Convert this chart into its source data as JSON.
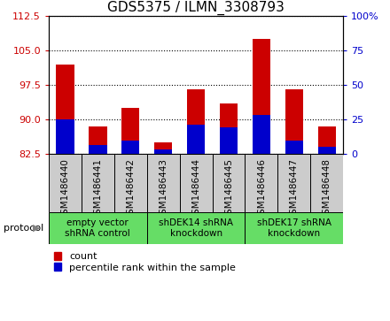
{
  "title": "GDS5375 / ILMN_3308793",
  "samples": [
    "GSM1486440",
    "GSM1486441",
    "GSM1486442",
    "GSM1486443",
    "GSM1486444",
    "GSM1486445",
    "GSM1486446",
    "GSM1486447",
    "GSM1486448"
  ],
  "count_values": [
    102.0,
    88.5,
    92.5,
    85.0,
    96.5,
    93.5,
    107.5,
    96.5,
    88.5
  ],
  "percentile_top": [
    90.0,
    84.5,
    85.5,
    83.5,
    88.8,
    88.3,
    91.0,
    85.5,
    84.0
  ],
  "percentile_bot": [
    82.5,
    82.5,
    82.5,
    82.5,
    82.5,
    82.5,
    82.5,
    82.5,
    82.5
  ],
  "bar_bottom": 82.5,
  "ylim_left": [
    82.5,
    112.5
  ],
  "yticks_left": [
    82.5,
    90.0,
    97.5,
    105.0,
    112.5
  ],
  "ylim_right": [
    0,
    100
  ],
  "yticks_right": [
    0,
    25,
    50,
    75,
    100
  ],
  "yticklabels_right": [
    "0",
    "25",
    "50",
    "75",
    "100%"
  ],
  "proto_labels": [
    "empty vector\nshRNA control",
    "shDEK14 shRNA\nknockdown",
    "shDEK17 shRNA\nknockdown"
  ],
  "proto_starts": [
    0,
    3,
    6
  ],
  "proto_ends": [
    3,
    6,
    9
  ],
  "proto_color": "#66dd66",
  "protocol_label": "protocol",
  "count_color": "#cc0000",
  "percentile_color": "#0000cc",
  "sample_bg_color": "#cccccc",
  "plot_bg_color": "#ffffff",
  "title_fontsize": 11,
  "tick_fontsize": 8,
  "legend_fontsize": 8,
  "proto_fontsize": 7.5
}
